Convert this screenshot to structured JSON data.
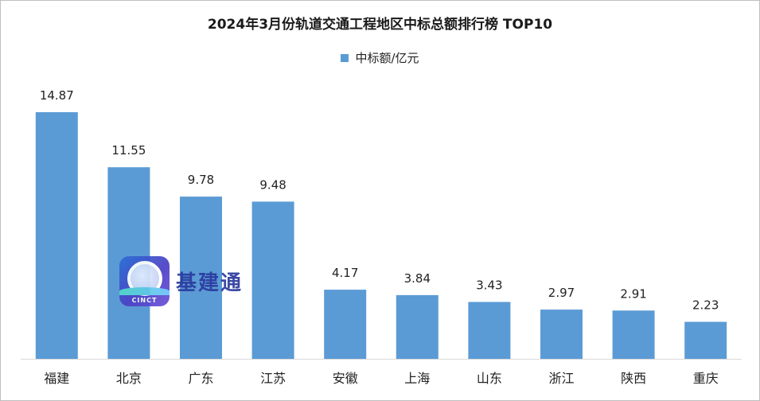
{
  "chart_data": {
    "type": "bar",
    "title": "2024年3月份轨道交通工程地区中标总额排行榜  TOP10",
    "legend": [
      "中标额/亿元"
    ],
    "categories": [
      "福建",
      "北京",
      "广东",
      "江苏",
      "安徽",
      "上海",
      "山东",
      "浙江",
      "陕西",
      "重庆"
    ],
    "series": [
      {
        "name": "中标额/亿元",
        "values": [
          14.87,
          11.55,
          9.78,
          9.48,
          4.17,
          3.84,
          3.43,
          2.97,
          2.91,
          2.23
        ],
        "color": "#5b9bd5"
      }
    ],
    "data_labels": [
      "14.87",
      "11.55",
      "9.78",
      "9.48",
      "4.17",
      "3.84",
      "3.43",
      "2.97",
      "2.91",
      "2.23"
    ],
    "ylim": [
      0,
      14.87
    ],
    "grid": false,
    "legend_position": "top-center"
  },
  "watermark": {
    "logo_caption": "CINCT",
    "text": "基建通"
  }
}
